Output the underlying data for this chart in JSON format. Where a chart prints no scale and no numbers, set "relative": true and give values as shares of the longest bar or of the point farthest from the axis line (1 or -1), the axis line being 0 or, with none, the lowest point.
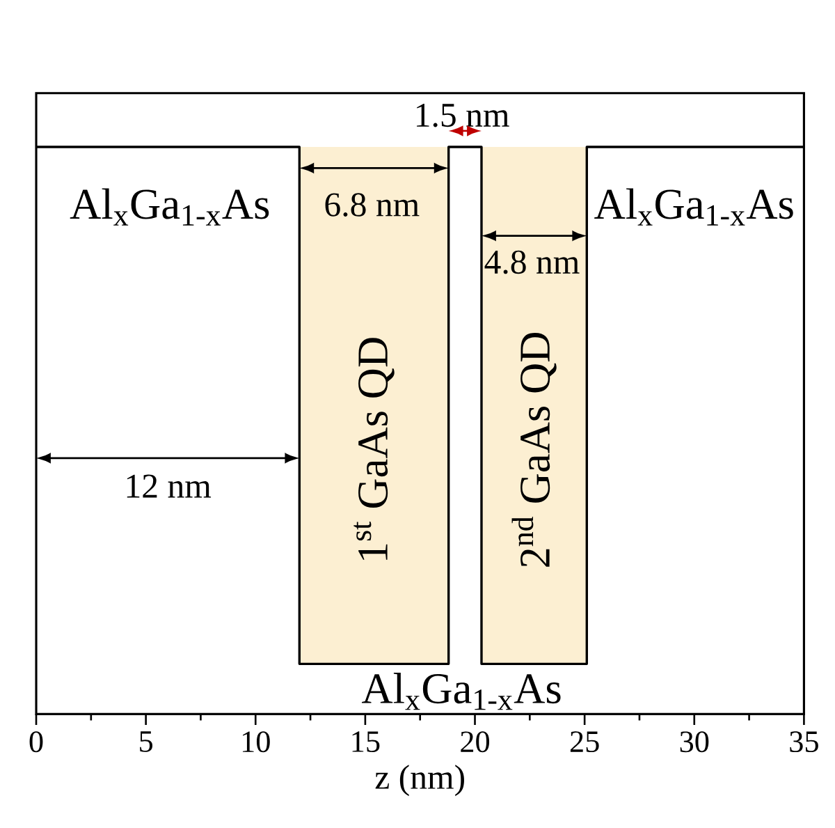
{
  "chart_data": {
    "type": "line",
    "relative": true,
    "xlabel": "z (nm)",
    "x": [
      0,
      12,
      12,
      18.8,
      18.8,
      20.3,
      20.3,
      25.1,
      25.1,
      35
    ],
    "series": [
      {
        "color": "#000000",
        "values": [
          1,
          1,
          0,
          0,
          1,
          1,
          0,
          0,
          1,
          1
        ]
      }
    ],
    "xlim": [
      0,
      35
    ],
    "xticks": [
      0,
      5,
      10,
      15,
      20,
      25,
      30,
      35
    ],
    "bands": [
      {
        "axis": "x",
        "from": 12,
        "to": 18.8,
        "label": "1$^{st}$ GaAs QD",
        "color": "#fcefd2"
      },
      {
        "axis": "x",
        "from": 20.3,
        "to": 25.1,
        "label": "2$^{nd}$ GaAs QD",
        "color": "#fcefd2"
      }
    ],
    "annotations": [
      "Al$_{x}$Ga$_{1-x}$As",
      "Al$_{x}$Ga$_{1-x}$As",
      "Al$_{x}$Ga$_{1-x}$As",
      "12 nm",
      "6.8 nm",
      "1.5 nm",
      "4.8 nm"
    ],
    "grid": false,
    "marker": "none",
    "line_style": "solid",
    "tick_labels": "x"
  }
}
